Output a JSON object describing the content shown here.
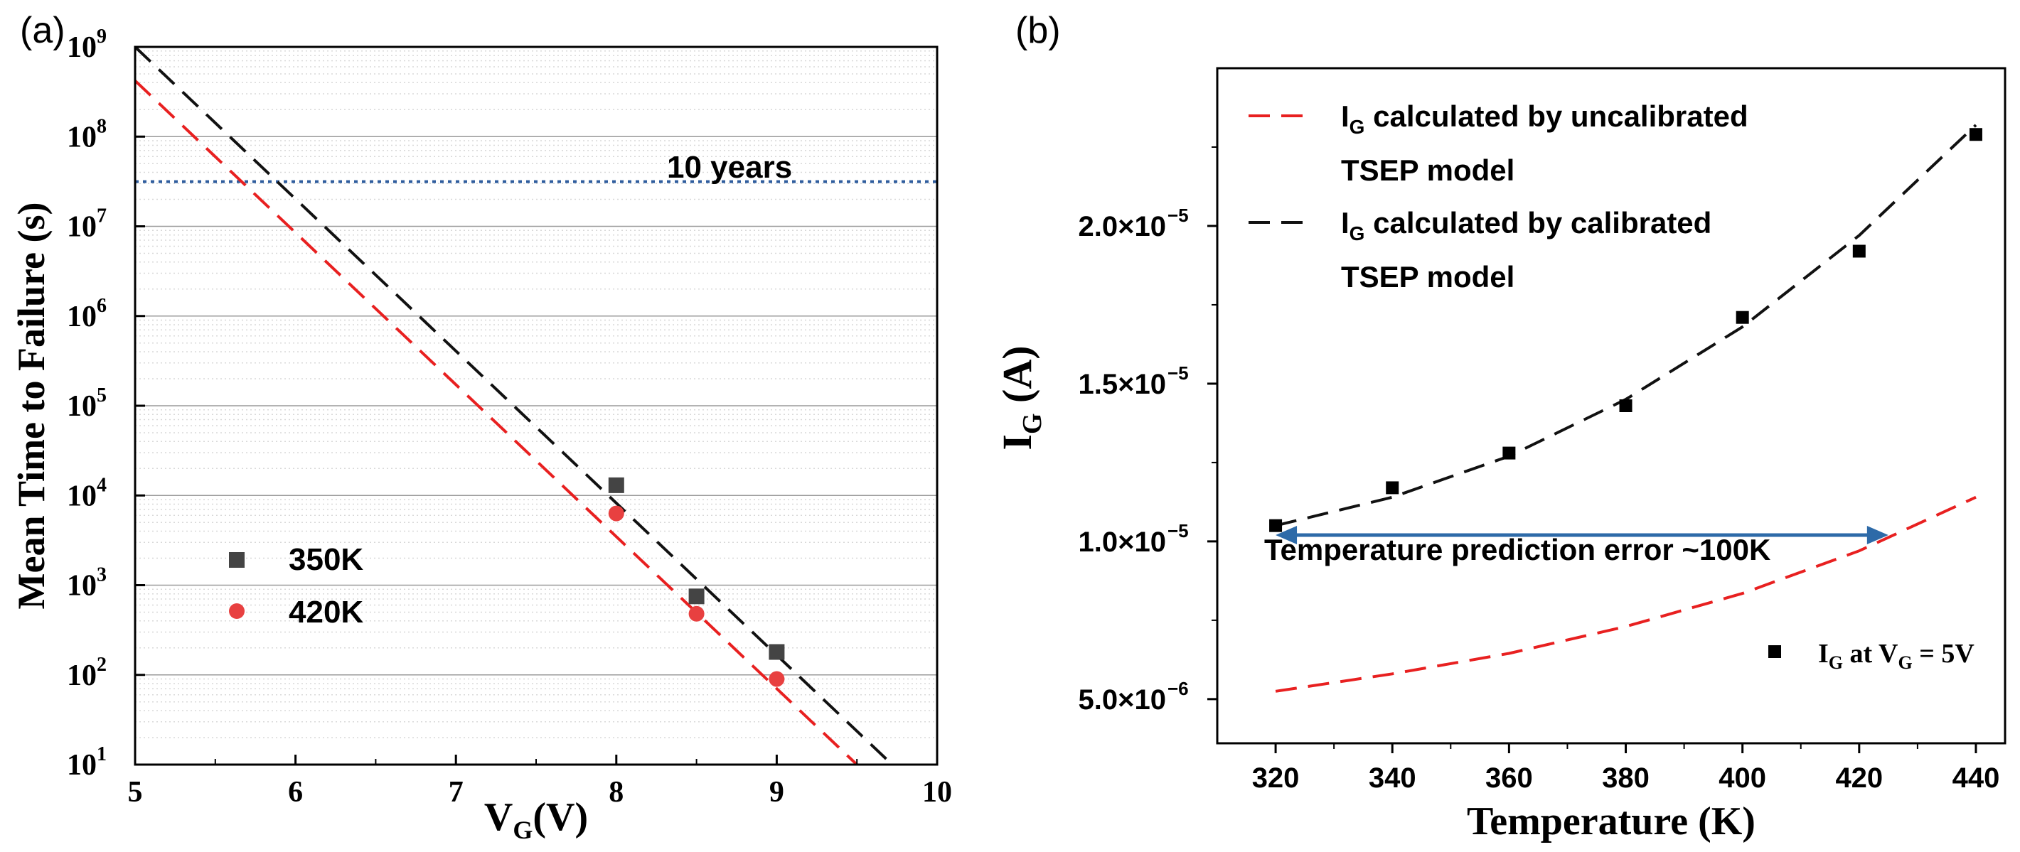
{
  "chart_data": [
    {
      "panel_label": "(a)",
      "type": "scatter",
      "xlabel_main": "V",
      "xlabel_sub": "G",
      "xlabel_rest": "(V)",
      "ylabel": "Mean Time to Failure (s)",
      "xlim": [
        5,
        10
      ],
      "ylim_log10": [
        1,
        9
      ],
      "x_ticks": [
        "5",
        "6",
        "7",
        "8",
        "9",
        "10"
      ],
      "y_tick_exponents": [
        "1",
        "2",
        "3",
        "4",
        "5",
        "6",
        "7",
        "8",
        "9"
      ],
      "y_tick_base": "10",
      "grid": true,
      "reference_line": {
        "label": "10 years",
        "value": 31500000,
        "color": "#2f5d9e"
      },
      "series": [
        {
          "name": "350K",
          "marker": "square",
          "color": "#444444",
          "x": [
            8,
            8.5,
            9
          ],
          "y": [
            13000,
            750,
            180
          ]
        },
        {
          "name": "420K",
          "marker": "circle",
          "color": "#e84040",
          "x": [
            8,
            8.5,
            9
          ],
          "y": [
            6300,
            480,
            90
          ]
        }
      ],
      "fits": [
        {
          "name": "350K fit",
          "color": "#111111",
          "x": [
            5,
            9.72
          ],
          "y": [
            1000000000,
            10
          ]
        },
        {
          "name": "420K fit",
          "color": "#e82020",
          "x": [
            5,
            9.5
          ],
          "y": [
            420000000,
            10
          ]
        }
      ],
      "legend_position": "lower-left"
    },
    {
      "panel_label": "(b)",
      "type": "scatter",
      "xlabel": "Temperature (K)",
      "ylabel_main": "I",
      "ylabel_sub": "G",
      "ylabel_rest": " (A)",
      "xlim": [
        310,
        445
      ],
      "ylim": [
        3.6e-06,
        2.5e-05
      ],
      "x_ticks": [
        "320",
        "340",
        "360",
        "380",
        "400",
        "420",
        "440"
      ],
      "y_ticks": [
        {
          "value": 5e-06,
          "mantissa": "5.0×10",
          "exp": "−6"
        },
        {
          "value": 1e-05,
          "mantissa": "1.0×10",
          "exp": "−5"
        },
        {
          "value": 1.5e-05,
          "mantissa": "1.5×10",
          "exp": "−5"
        },
        {
          "value": 2e-05,
          "mantissa": "2.0×10",
          "exp": "−5"
        }
      ],
      "grid": false,
      "series": [
        {
          "name": "I_G at V_G = 5V",
          "marker": "square",
          "color": "#000000",
          "x": [
            320,
            340,
            360,
            380,
            400,
            420,
            440
          ],
          "y": [
            1.05e-05,
            1.17e-05,
            1.28e-05,
            1.43e-05,
            1.71e-05,
            1.92e-05,
            2.29e-05
          ]
        }
      ],
      "curves": [
        {
          "name": "I_G calculated by uncalibrated TSEP model",
          "color": "#e82020",
          "x": [
            320,
            340,
            360,
            380,
            400,
            420,
            440
          ],
          "y": [
            5.25e-06,
            5.8e-06,
            6.45e-06,
            7.3e-06,
            8.35e-06,
            9.7e-06,
            1.14e-05
          ]
        },
        {
          "name": "I_G calculated by calibrated TSEP model",
          "color": "#111111",
          "x": [
            320,
            340,
            360,
            380,
            400,
            420,
            440
          ],
          "y": [
            1.05e-05,
            1.14e-05,
            1.27e-05,
            1.45e-05,
            1.68e-05,
            1.97e-05,
            2.32e-05
          ]
        }
      ],
      "legend": [
        {
          "pre": "I",
          "sub": "G",
          "line1": " calculated by uncalibrated",
          "line2": "TSEP model",
          "color": "#e82020"
        },
        {
          "pre": "I",
          "sub": "G",
          "line1": " calculated by calibrated",
          "line2": "TSEP model",
          "color": "#111111"
        }
      ],
      "marker_legend": {
        "p1": "I",
        "s1": "G",
        "p2": " at V",
        "s2": "G",
        "p3": " = 5V"
      },
      "annotation": {
        "text": "Temperature prediction error ~100K",
        "x_from": 320,
        "x_to": 425,
        "y": 1.02e-05,
        "color": "#2d6aa8"
      }
    }
  ]
}
